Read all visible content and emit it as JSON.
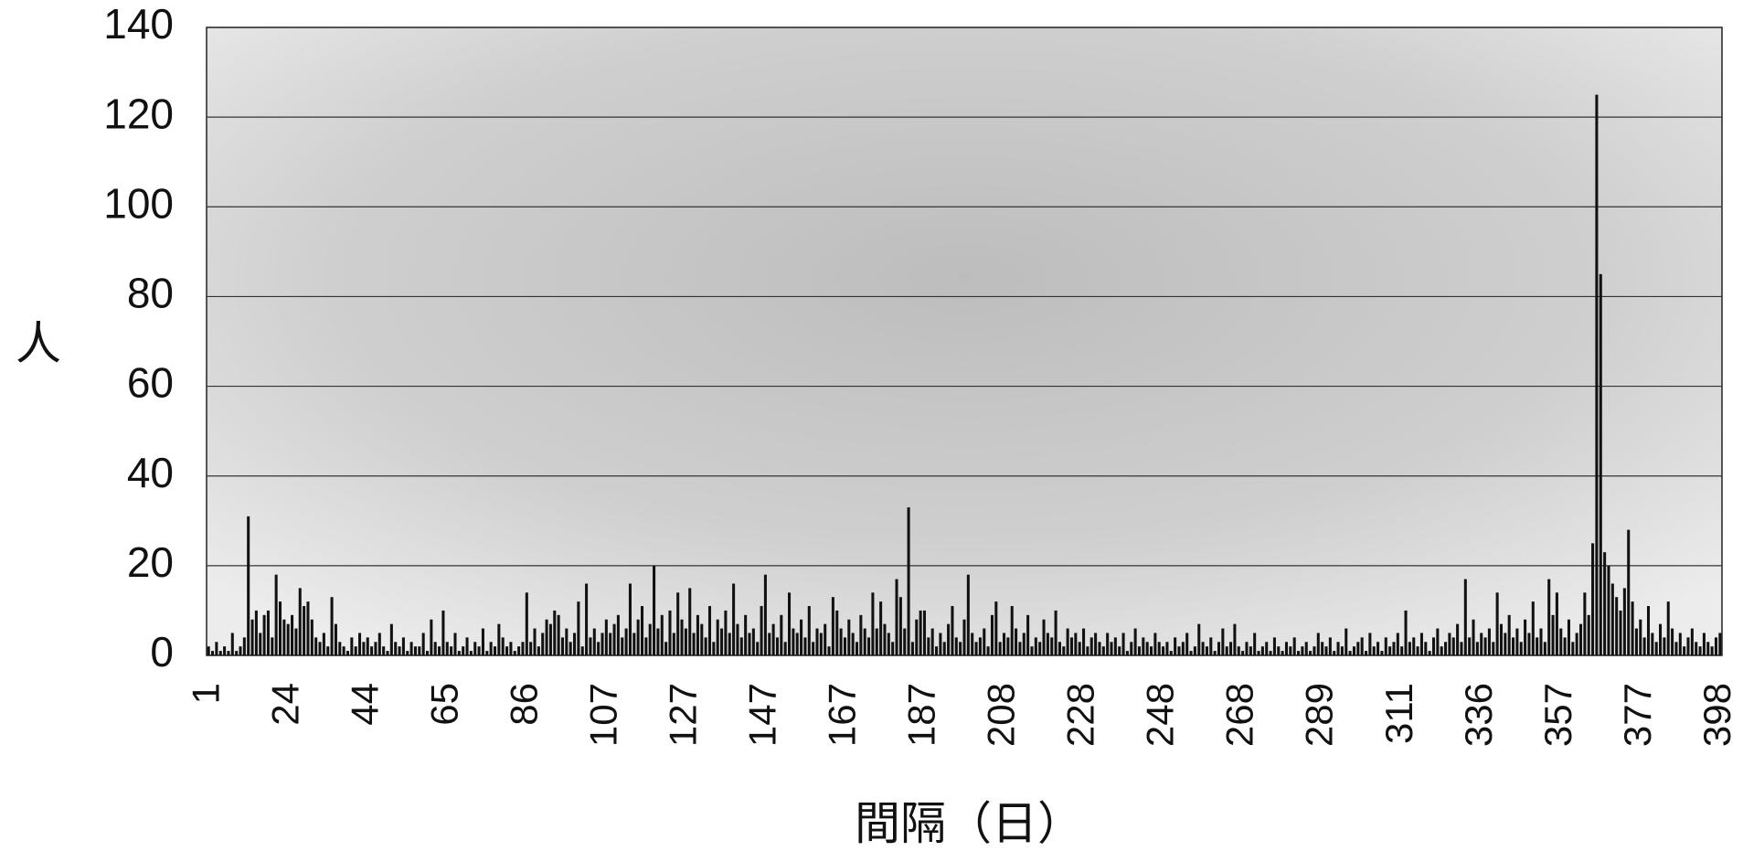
{
  "chart_data": {
    "type": "bar",
    "y_label": "人",
    "x_label": "間隔（日）",
    "categories": [
      "1",
      null,
      null,
      null,
      null,
      null,
      null,
      null,
      null,
      null,
      null,
      null,
      null,
      null,
      null,
      null,
      null,
      null,
      null,
      null,
      "24",
      null,
      null,
      null,
      null,
      null,
      null,
      null,
      null,
      null,
      null,
      null,
      null,
      null,
      null,
      null,
      null,
      null,
      null,
      null,
      "44",
      null,
      null,
      null,
      null,
      null,
      null,
      null,
      null,
      null,
      null,
      null,
      null,
      null,
      null,
      null,
      null,
      null,
      null,
      null,
      "65",
      null,
      null,
      null,
      null,
      null,
      null,
      null,
      null,
      null,
      null,
      null,
      null,
      null,
      null,
      null,
      null,
      null,
      null,
      null,
      "86",
      null,
      null,
      null,
      null,
      null,
      null,
      null,
      null,
      null,
      null,
      null,
      null,
      null,
      null,
      null,
      null,
      null,
      null,
      null,
      "107",
      null,
      null,
      null,
      null,
      null,
      null,
      null,
      null,
      null,
      null,
      null,
      null,
      null,
      null,
      null,
      null,
      null,
      null,
      null,
      "127",
      null,
      null,
      null,
      null,
      null,
      null,
      null,
      null,
      null,
      null,
      null,
      null,
      null,
      null,
      null,
      null,
      null,
      null,
      null,
      "147",
      null,
      null,
      null,
      null,
      null,
      null,
      null,
      null,
      null,
      null,
      null,
      null,
      null,
      null,
      null,
      null,
      null,
      null,
      null,
      "167",
      null,
      null,
      null,
      null,
      null,
      null,
      null,
      null,
      null,
      null,
      null,
      null,
      null,
      null,
      null,
      null,
      null,
      null,
      null,
      "187",
      null,
      null,
      null,
      null,
      null,
      null,
      null,
      null,
      null,
      null,
      null,
      null,
      null,
      null,
      null,
      null,
      null,
      null,
      null,
      "208",
      null,
      null,
      null,
      null,
      null,
      null,
      null,
      null,
      null,
      null,
      null,
      null,
      null,
      null,
      null,
      null,
      null,
      null,
      null,
      "228",
      null,
      null,
      null,
      null,
      null,
      null,
      null,
      null,
      null,
      null,
      null,
      null,
      null,
      null,
      null,
      null,
      null,
      null,
      null,
      "248",
      null,
      null,
      null,
      null,
      null,
      null,
      null,
      null,
      null,
      null,
      null,
      null,
      null,
      null,
      null,
      null,
      null,
      null,
      null,
      "268",
      null,
      null,
      null,
      null,
      null,
      null,
      null,
      null,
      null,
      null,
      null,
      null,
      null,
      null,
      null,
      null,
      null,
      null,
      null,
      "289",
      null,
      null,
      null,
      null,
      null,
      null,
      null,
      null,
      null,
      null,
      null,
      null,
      null,
      null,
      null,
      null,
      null,
      null,
      null,
      "311",
      null,
      null,
      null,
      null,
      null,
      null,
      null,
      null,
      null,
      null,
      null,
      null,
      null,
      null,
      null,
      null,
      null,
      null,
      null,
      "336",
      null,
      null,
      null,
      null,
      null,
      null,
      null,
      null,
      null,
      null,
      null,
      null,
      null,
      null,
      null,
      null,
      null,
      null,
      null,
      "357",
      null,
      null,
      null,
      null,
      null,
      null,
      null,
      null,
      null,
      null,
      null,
      null,
      null,
      null,
      null,
      null,
      null,
      null,
      null,
      "377",
      null,
      null,
      null,
      null,
      null,
      null,
      null,
      null,
      null,
      null,
      null,
      null,
      null,
      null,
      null,
      null,
      null,
      null,
      null,
      "398"
    ],
    "values": [
      2,
      1,
      3,
      1,
      2,
      1,
      5,
      1,
      2,
      4,
      31,
      8,
      10,
      5,
      9,
      10,
      4,
      18,
      12,
      8,
      7,
      9,
      6,
      15,
      11,
      12,
      8,
      4,
      3,
      5,
      2,
      13,
      7,
      3,
      2,
      1,
      4,
      2,
      5,
      3,
      4,
      2,
      3,
      5,
      2,
      1,
      7,
      3,
      2,
      4,
      1,
      3,
      2,
      2,
      5,
      1,
      8,
      3,
      2,
      10,
      3,
      2,
      5,
      1,
      2,
      4,
      1,
      3,
      2,
      6,
      1,
      3,
      2,
      7,
      4,
      2,
      3,
      1,
      2,
      3,
      14,
      3,
      6,
      2,
      5,
      8,
      7,
      10,
      9,
      4,
      6,
      3,
      5,
      12,
      2,
      16,
      4,
      6,
      3,
      5,
      8,
      5,
      7,
      9,
      4,
      6,
      16,
      5,
      8,
      11,
      4,
      7,
      20,
      6,
      9,
      3,
      10,
      5,
      14,
      8,
      6,
      15,
      5,
      9,
      7,
      4,
      11,
      3,
      8,
      6,
      10,
      5,
      16,
      7,
      4,
      9,
      5,
      6,
      3,
      11,
      18,
      5,
      7,
      4,
      9,
      3,
      14,
      6,
      5,
      8,
      4,
      11,
      3,
      6,
      5,
      7,
      2,
      13,
      10,
      6,
      4,
      8,
      5,
      3,
      9,
      6,
      4,
      14,
      6,
      12,
      7,
      5,
      3,
      17,
      13,
      6,
      33,
      3,
      8,
      10,
      10,
      4,
      6,
      2,
      5,
      3,
      7,
      11,
      4,
      3,
      8,
      18,
      5,
      3,
      4,
      6,
      2,
      9,
      12,
      3,
      5,
      4,
      11,
      6,
      3,
      5,
      9,
      2,
      4,
      3,
      8,
      5,
      4,
      10,
      3,
      2,
      6,
      4,
      5,
      3,
      6,
      2,
      4,
      5,
      3,
      2,
      5,
      3,
      4,
      2,
      5,
      1,
      3,
      6,
      2,
      4,
      3,
      2,
      5,
      3,
      2,
      3,
      1,
      4,
      2,
      3,
      5,
      1,
      2,
      7,
      3,
      2,
      4,
      1,
      3,
      6,
      2,
      3,
      7,
      2,
      1,
      3,
      2,
      5,
      1,
      2,
      3,
      1,
      4,
      2,
      1,
      3,
      2,
      4,
      1,
      2,
      3,
      1,
      2,
      5,
      3,
      2,
      4,
      1,
      3,
      2,
      6,
      1,
      2,
      3,
      4,
      1,
      5,
      2,
      3,
      1,
      4,
      2,
      3,
      5,
      2,
      10,
      3,
      4,
      2,
      5,
      3,
      1,
      4,
      6,
      2,
      3,
      5,
      4,
      7,
      3,
      17,
      4,
      8,
      3,
      5,
      4,
      6,
      3,
      14,
      7,
      5,
      9,
      4,
      6,
      3,
      8,
      5,
      12,
      4,
      6,
      3,
      17,
      9,
      14,
      6,
      4,
      8,
      3,
      5,
      7,
      14,
      9,
      25,
      125,
      85,
      23,
      20,
      16,
      13,
      10,
      15,
      28,
      12,
      6,
      8,
      4,
      11,
      5,
      3,
      7,
      4,
      12,
      6,
      3,
      5,
      2,
      4,
      6,
      3,
      2,
      5,
      3,
      2,
      4,
      5
    ],
    "color": "#111111",
    "ylim": [
      0,
      140
    ],
    "yticks": [
      0,
      20,
      40,
      60,
      80,
      100,
      120,
      140
    ],
    "grid": true
  }
}
